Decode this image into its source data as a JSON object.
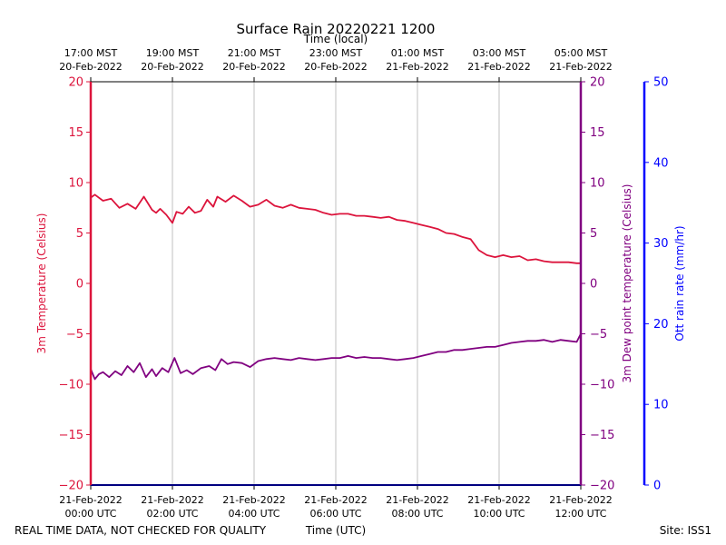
{
  "chart_data": {
    "type": "line",
    "title": "Surface Rain 20220221 1200",
    "top_axis_label": "Time (local)",
    "xlabel": "Time (UTC)",
    "ylabel_left": "3m Temperature (Celsius)",
    "ylabel_right": "3m Dew point temperature (Celsius)",
    "ylabel_right2": "Ott rain rate (mm/hr)",
    "footer_left": "REAL TIME DATA, NOT CHECKED FOR QUALITY",
    "footer_right": "Site: ISS1",
    "x_range_hours": [
      0,
      12
    ],
    "ylim_temp": [
      -20,
      20
    ],
    "ylim_rain": [
      0,
      50
    ],
    "grid": "vertical",
    "colors": {
      "temperature": "#dc143c",
      "dewpoint": "#800080",
      "rain": "#0000ff"
    },
    "x_ticks_utc": [
      {
        "line1": "21-Feb-2022",
        "line2": "00:00 UTC"
      },
      {
        "line1": "21-Feb-2022",
        "line2": "02:00 UTC"
      },
      {
        "line1": "21-Feb-2022",
        "line2": "04:00 UTC"
      },
      {
        "line1": "21-Feb-2022",
        "line2": "06:00 UTC"
      },
      {
        "line1": "21-Feb-2022",
        "line2": "08:00 UTC"
      },
      {
        "line1": "21-Feb-2022",
        "line2": "10:00 UTC"
      },
      {
        "line1": "21-Feb-2022",
        "line2": "12:00 UTC"
      }
    ],
    "x_ticks_local": [
      {
        "line1": "17:00 MST",
        "line2": "20-Feb-2022"
      },
      {
        "line1": "19:00 MST",
        "line2": "20-Feb-2022"
      },
      {
        "line1": "21:00 MST",
        "line2": "20-Feb-2022"
      },
      {
        "line1": "23:00 MST",
        "line2": "20-Feb-2022"
      },
      {
        "line1": "01:00 MST",
        "line2": "21-Feb-2022"
      },
      {
        "line1": "03:00 MST",
        "line2": "21-Feb-2022"
      },
      {
        "line1": "05:00 MST",
        "line2": "21-Feb-2022"
      }
    ],
    "y_ticks_temp": [
      20,
      15,
      10,
      5,
      0,
      -5,
      -10,
      -15,
      -20
    ],
    "y_ticks_rain": [
      50,
      40,
      30,
      20,
      10,
      0
    ],
    "series": [
      {
        "name": "3m Temperature (Celsius)",
        "color": "#dc143c",
        "x": [
          0,
          0.1,
          0.3,
          0.5,
          0.7,
          0.9,
          1.1,
          1.3,
          1.5,
          1.6,
          1.7,
          1.85,
          2.0,
          2.1,
          2.25,
          2.4,
          2.55,
          2.7,
          2.85,
          3.0,
          3.1,
          3.3,
          3.5,
          3.7,
          3.9,
          4.1,
          4.3,
          4.5,
          4.7,
          4.9,
          5.1,
          5.3,
          5.5,
          5.7,
          5.9,
          6.1,
          6.3,
          6.5,
          6.7,
          6.9,
          7.1,
          7.3,
          7.5,
          7.7,
          7.9,
          8.1,
          8.3,
          8.5,
          8.7,
          8.9,
          9.1,
          9.3,
          9.5,
          9.7,
          9.9,
          10.0,
          10.1,
          10.3,
          10.5,
          10.7,
          10.9,
          11.1,
          11.3,
          11.5,
          11.7,
          11.9,
          12.0
        ],
        "y": [
          8.5,
          8.8,
          8.2,
          8.4,
          7.5,
          7.9,
          7.4,
          8.6,
          7.3,
          7.0,
          7.4,
          6.8,
          6.0,
          7.1,
          6.9,
          7.6,
          7.0,
          7.2,
          8.3,
          7.6,
          8.6,
          8.1,
          8.7,
          8.2,
          7.6,
          7.8,
          8.3,
          7.7,
          7.5,
          7.8,
          7.5,
          7.4,
          7.3,
          7.0,
          6.8,
          6.9,
          6.9,
          6.7,
          6.7,
          6.6,
          6.5,
          6.6,
          6.3,
          6.2,
          6.0,
          5.8,
          5.6,
          5.4,
          5.0,
          4.9,
          4.6,
          4.4,
          3.3,
          2.8,
          2.6,
          2.7,
          2.8,
          2.6,
          2.7,
          2.3,
          2.4,
          2.2,
          2.1,
          2.1,
          2.1,
          2.0,
          2.0
        ]
      },
      {
        "name": "3m Dew point temperature (Celsius)",
        "color": "#800080",
        "x": [
          0,
          0.1,
          0.2,
          0.3,
          0.45,
          0.6,
          0.75,
          0.9,
          1.05,
          1.2,
          1.35,
          1.5,
          1.6,
          1.75,
          1.9,
          2.05,
          2.2,
          2.35,
          2.5,
          2.7,
          2.9,
          3.05,
          3.2,
          3.35,
          3.5,
          3.7,
          3.9,
          4.1,
          4.3,
          4.5,
          4.7,
          4.9,
          5.1,
          5.3,
          5.5,
          5.7,
          5.9,
          6.1,
          6.3,
          6.5,
          6.7,
          6.9,
          7.1,
          7.3,
          7.5,
          7.7,
          7.9,
          8.1,
          8.3,
          8.5,
          8.7,
          8.9,
          9.1,
          9.3,
          9.5,
          9.7,
          9.9,
          10.1,
          10.3,
          10.5,
          10.7,
          10.9,
          11.1,
          11.3,
          11.5,
          11.7,
          11.9,
          12.0
        ],
        "y": [
          -8.5,
          -9.5,
          -9.0,
          -8.8,
          -9.3,
          -8.7,
          -9.1,
          -8.2,
          -8.8,
          -7.9,
          -9.3,
          -8.5,
          -9.2,
          -8.4,
          -8.8,
          -7.4,
          -8.9,
          -8.6,
          -9.0,
          -8.4,
          -8.2,
          -8.6,
          -7.5,
          -8.0,
          -7.8,
          -7.9,
          -8.3,
          -7.7,
          -7.5,
          -7.4,
          -7.5,
          -7.6,
          -7.4,
          -7.5,
          -7.6,
          -7.5,
          -7.4,
          -7.4,
          -7.2,
          -7.4,
          -7.3,
          -7.4,
          -7.4,
          -7.5,
          -7.6,
          -7.5,
          -7.4,
          -7.2,
          -7.0,
          -6.8,
          -6.8,
          -6.6,
          -6.6,
          -6.5,
          -6.4,
          -6.3,
          -6.3,
          -6.1,
          -5.9,
          -5.8,
          -5.7,
          -5.7,
          -5.6,
          -5.8,
          -5.6,
          -5.7,
          -5.8,
          -5.0
        ]
      },
      {
        "name": "Ott rain rate (mm/hr)",
        "color": "#0000ff",
        "x": [
          0,
          12
        ],
        "y": [
          0,
          0
        ]
      }
    ]
  }
}
